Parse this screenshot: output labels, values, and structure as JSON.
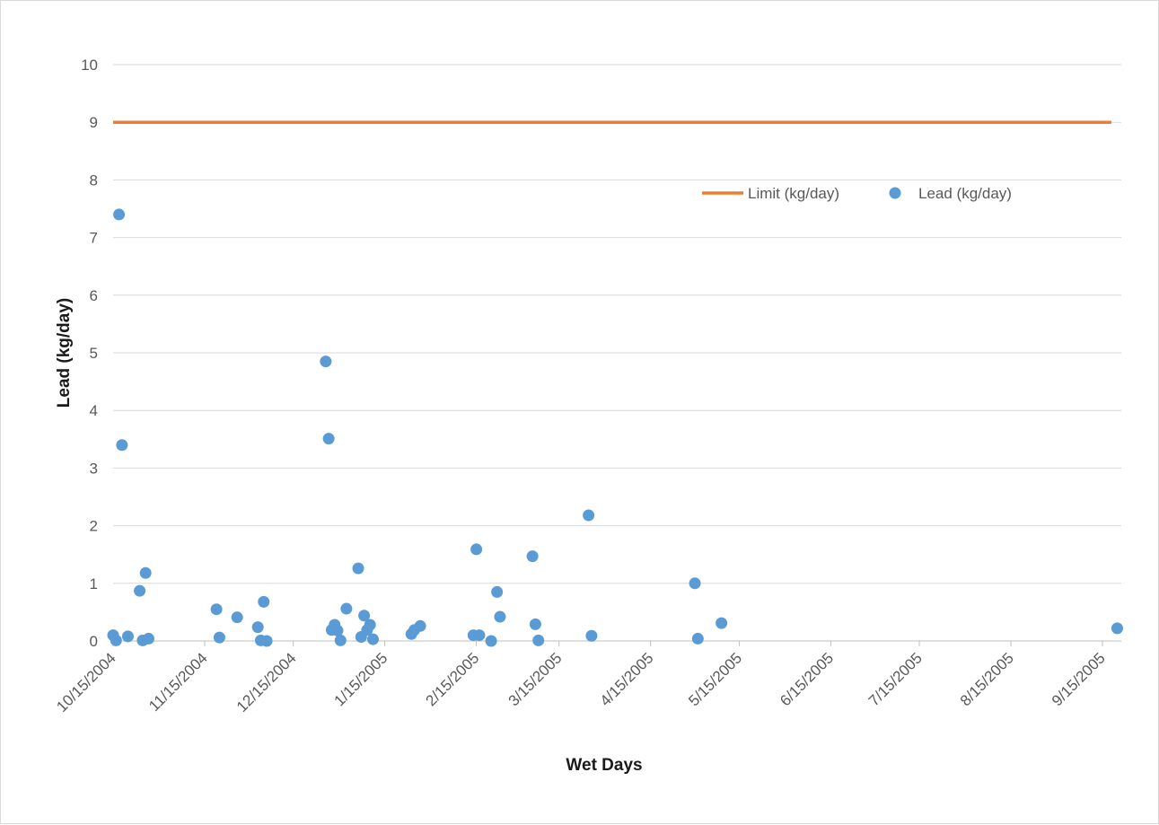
{
  "chart_data": {
    "type": "scatter",
    "title": "",
    "xlabel": "Wet Days",
    "ylabel": "Lead (kg/day)",
    "ylim": [
      0,
      10
    ],
    "yticks": [
      0,
      1,
      2,
      3,
      4,
      5,
      6,
      7,
      8,
      9,
      10
    ],
    "xlim": [
      "2004-10-15",
      "2005-09-15"
    ],
    "xtick_labels": [
      "10/15/2004",
      "11/15/2004",
      "12/15/2004",
      "1/15/2005",
      "2/15/2005",
      "3/15/2005",
      "4/15/2005",
      "5/15/2005",
      "6/15/2005",
      "7/15/2005",
      "8/15/2005",
      "9/15/2005"
    ],
    "xtick_dates": [
      "2004-10-15",
      "2004-11-15",
      "2004-12-15",
      "2005-01-15",
      "2005-02-15",
      "2005-03-15",
      "2005-04-15",
      "2005-05-15",
      "2005-06-15",
      "2005-07-15",
      "2005-08-15",
      "2005-09-15"
    ],
    "grid": true,
    "legend_position": "upper-right",
    "series": [
      {
        "name": "Limit (kg/day)",
        "kind": "line",
        "color": "#ED7D31",
        "points": [
          [
            "2004-10-15",
            9
          ],
          [
            "2005-09-18",
            9
          ]
        ]
      },
      {
        "name": "Lead (kg/day)",
        "kind": "scatter",
        "color": "#5B9BD5",
        "points": [
          [
            "2004-10-15",
            0.1
          ],
          [
            "2004-10-16",
            0.01
          ],
          [
            "2004-10-17",
            7.4
          ],
          [
            "2004-10-18",
            3.4
          ],
          [
            "2004-10-20",
            0.08
          ],
          [
            "2004-10-24",
            0.87
          ],
          [
            "2004-10-25",
            0.01
          ],
          [
            "2004-10-26",
            1.18
          ],
          [
            "2004-10-27",
            0.04
          ],
          [
            "2004-11-19",
            0.55
          ],
          [
            "2004-11-20",
            0.06
          ],
          [
            "2004-11-26",
            0.41
          ],
          [
            "2004-12-03",
            0.24
          ],
          [
            "2004-12-04",
            0.01
          ],
          [
            "2004-12-05",
            0.68
          ],
          [
            "2004-12-06",
            0.0
          ],
          [
            "2004-12-26",
            4.85
          ],
          [
            "2004-12-27",
            3.51
          ],
          [
            "2004-12-28",
            0.19
          ],
          [
            "2004-12-29",
            0.28
          ],
          [
            "2004-12-30",
            0.18
          ],
          [
            "2004-12-31",
            0.01
          ],
          [
            "2005-01-02",
            0.56
          ],
          [
            "2005-01-06",
            1.26
          ],
          [
            "2005-01-07",
            0.07
          ],
          [
            "2005-01-08",
            0.44
          ],
          [
            "2005-01-09",
            0.19
          ],
          [
            "2005-01-10",
            0.28
          ],
          [
            "2005-01-11",
            0.03
          ],
          [
            "2005-01-24",
            0.12
          ],
          [
            "2005-01-25",
            0.19
          ],
          [
            "2005-01-27",
            0.26
          ],
          [
            "2005-02-14",
            0.1
          ],
          [
            "2005-02-15",
            1.59
          ],
          [
            "2005-02-16",
            0.1
          ],
          [
            "2005-02-20",
            0.0
          ],
          [
            "2005-02-22",
            0.85
          ],
          [
            "2005-02-23",
            0.42
          ],
          [
            "2005-03-06",
            1.47
          ],
          [
            "2005-03-07",
            0.29
          ],
          [
            "2005-03-08",
            0.01
          ],
          [
            "2005-03-25",
            2.18
          ],
          [
            "2005-03-26",
            0.09
          ],
          [
            "2005-04-30",
            1.0
          ],
          [
            "2005-05-01",
            0.04
          ],
          [
            "2005-05-09",
            0.31
          ],
          [
            "2005-09-20",
            0.22
          ]
        ]
      }
    ]
  }
}
